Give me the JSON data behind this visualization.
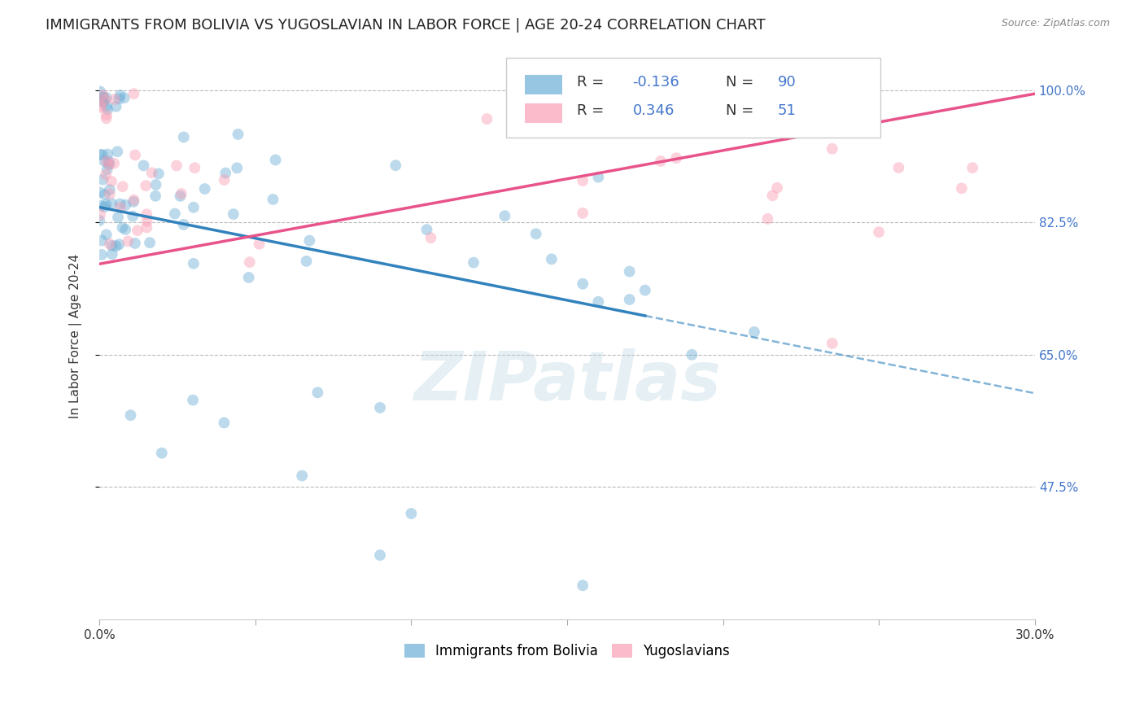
{
  "title": "IMMIGRANTS FROM BOLIVIA VS YUGOSLAVIAN IN LABOR FORCE | AGE 20-24 CORRELATION CHART",
  "source": "Source: ZipAtlas.com",
  "ylabel": "In Labor Force | Age 20-24",
  "xlim": [
    0.0,
    0.3
  ],
  "ylim": [
    0.3,
    1.05
  ],
  "yticks": [
    0.475,
    0.65,
    0.825,
    1.0
  ],
  "ytick_labels": [
    "47.5%",
    "65.0%",
    "82.5%",
    "100.0%"
  ],
  "xticks": [
    0.0,
    0.05,
    0.1,
    0.15,
    0.2,
    0.25,
    0.3
  ],
  "xtick_labels": [
    "0.0%",
    "",
    "",
    "",
    "",
    "",
    "30.0%"
  ],
  "bolivia_R": -0.136,
  "bolivia_N": 90,
  "yugoslavian_R": 0.346,
  "yugoslavian_N": 51,
  "bolivia_color": "#6baed6",
  "yugoslavian_color": "#fa9fb5",
  "bolivia_line_color": "#3182bd",
  "yugoslavian_line_color": "#e8538a",
  "marker_size": 100,
  "marker_alpha": 0.45,
  "background_color": "#ffffff",
  "grid_color": "#bbbbbb",
  "title_fontsize": 13,
  "axis_label_fontsize": 11,
  "tick_label_fontsize": 11,
  "tick_label_color": "#4477cc",
  "legend_label_bolivia": "Immigrants from Bolivia",
  "legend_label_yugoslavian": "Yugoslavians",
  "watermark": "ZIPatlas",
  "watermark_color": "#b8d4e0",
  "watermark_alpha": 0.35,
  "watermark_fontsize": 60,
  "bolivia_line_solid_end": 0.175,
  "yugoslavian_line_start": 0.0,
  "yugoslavian_line_end": 0.3,
  "bolivia_intercept": 0.845,
  "bolivia_slope": -0.82,
  "yugoslavian_intercept": 0.77,
  "yugoslavian_slope": 0.75
}
